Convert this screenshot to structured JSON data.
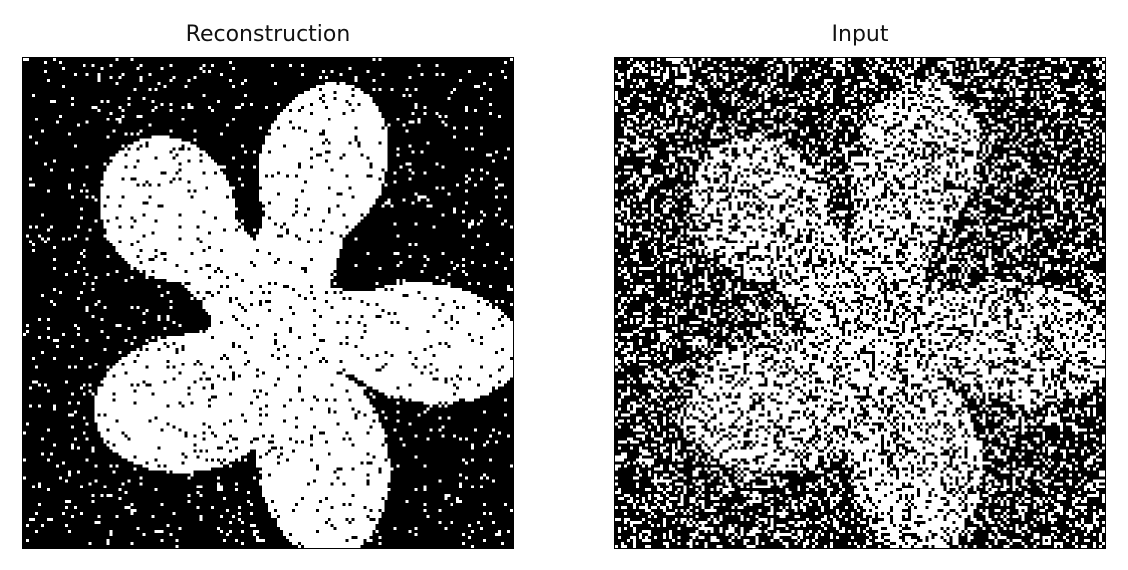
{
  "figure": {
    "panels": [
      {
        "title": "Reconstruction",
        "image": "denoised binary flower silhouette (white petals on black background)",
        "foreground_color": "#ffffff",
        "background_color": "#000000"
      },
      {
        "title": "Input",
        "image": "noisy binary flower silhouette (salt-and-pepper noise)",
        "foreground_color": "#ffffff",
        "background_color": "#000000"
      }
    ]
  }
}
